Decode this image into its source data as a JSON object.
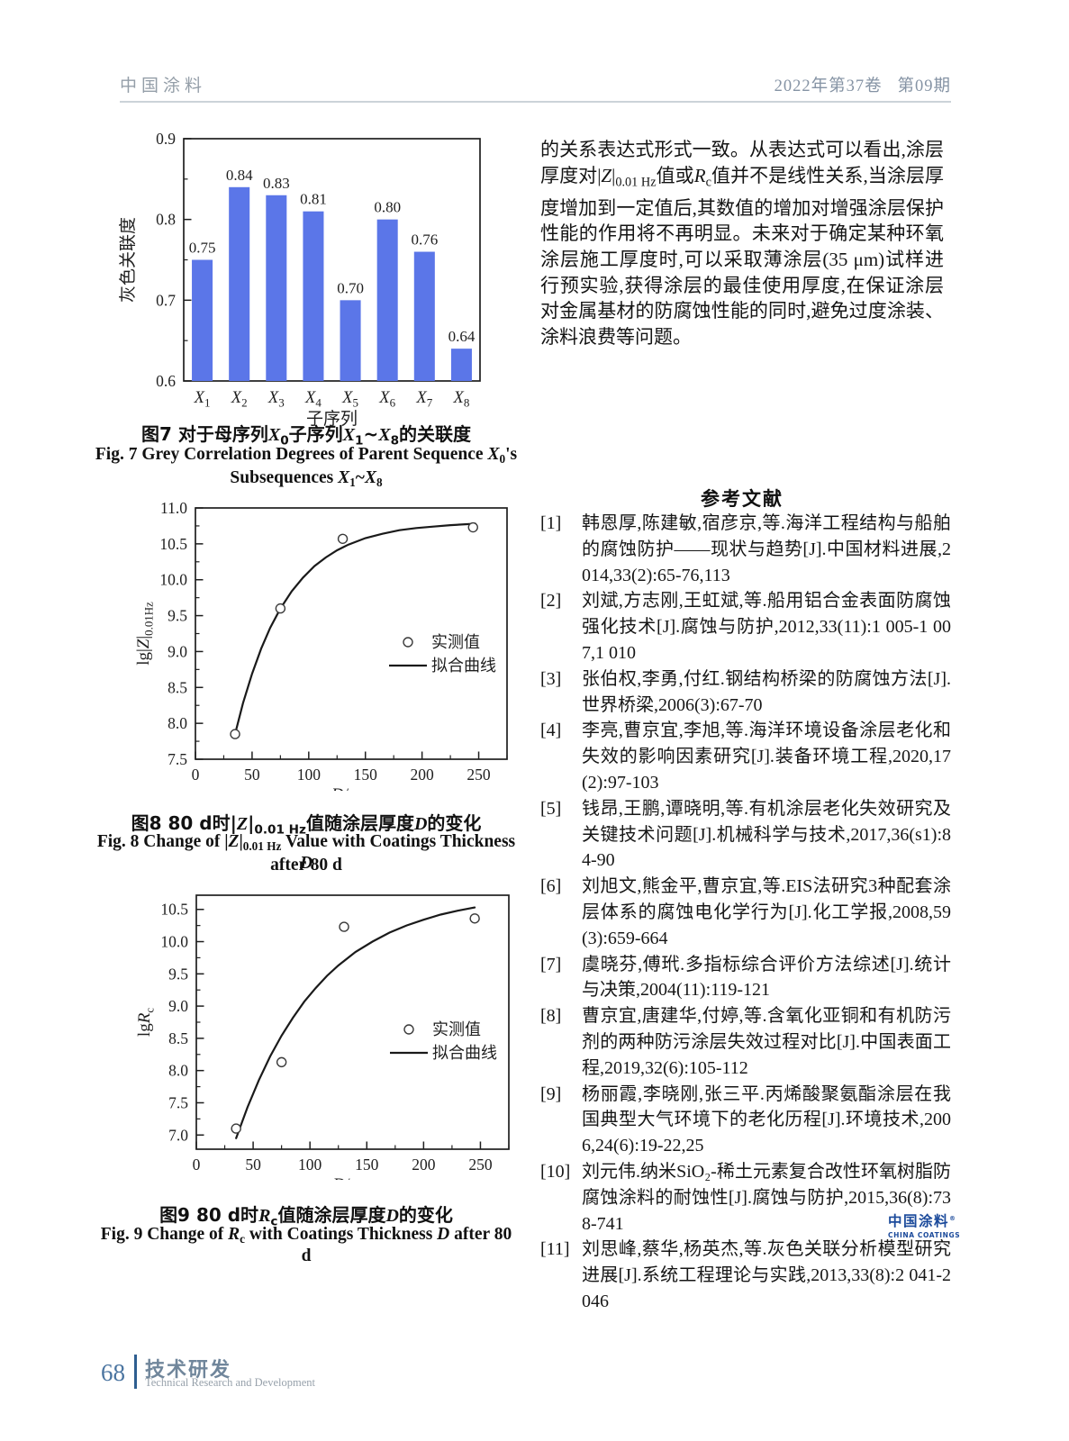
{
  "page": {
    "header": {
      "brand": "中国涂料",
      "issue": "2022年第37卷   第09期"
    },
    "footer": {
      "page_number": "68",
      "section_zh": "技术研发",
      "section_en": "Technical Research and Development"
    },
    "logo": {
      "zh": "中国涂料",
      "mark": "®",
      "en": "CHINA COATINGS"
    }
  },
  "article": {
    "paragraph_rich": [
      {
        "t": "的关系表达式形式一致。从表达式可以看出,涂层厚度对|"
      },
      {
        "t": "Z",
        "i": 1
      },
      {
        "t": "|"
      },
      {
        "t": "0.01 Hz",
        "sub": 1
      },
      {
        "t": "值或"
      },
      {
        "t": "R",
        "i": 1
      },
      {
        "t": "c",
        "sub": 1
      },
      {
        "t": "值并不是线性关系,当涂层厚度增加到一定值后,其数值的增加对增强涂层保护性能的作用将不再明显。未来对于确定某种环氧涂层施工厚度时,可以采取薄涂层(35 μm)试样进行预实验,获得涂层的最佳使用厚度,在保证涂层对金属基材的防腐蚀性能的同时,避免过度涂装、涂料浪费等问题。"
      }
    ],
    "references_heading": "参考文献",
    "references": [
      {
        "num": "[1]",
        "text": "韩恩厚,陈建敏,宿彦京,等.海洋工程结构与船舶的腐蚀防护——现状与趋势[J].中国材料进展,2014,33(2):65-76,113"
      },
      {
        "num": "[2]",
        "text": "刘斌,方志刚,王虹斌,等.船用铝合金表面防腐蚀强化技术[J].腐蚀与防护,2012,33(11):1 005-1 007,1 010"
      },
      {
        "num": "[3]",
        "text": "张伯权,李勇,付红.钢结构桥梁的防腐蚀方法[J].世界桥梁,2006(3):67-70"
      },
      {
        "num": "[4]",
        "text": "李亮,曹京宜,李旭,等.海洋环境设备涂层老化和失效的影响因素研究[J].装备环境工程,2020,17(2):97-103"
      },
      {
        "num": "[5]",
        "text": "钱昂,王鹏,谭晓明,等.有机涂层老化失效研究及关键技术问题[J].机械科学与技术,2017,36(s1):84-90"
      },
      {
        "num": "[6]",
        "text": "刘旭文,熊金平,曹京宜,等.EIS法研究3种配套涂层体系的腐蚀电化学行为[J].化工学报,2008,59(3):659-664"
      },
      {
        "num": "[7]",
        "text": "虞晓芬,傅玳.多指标综合评价方法综述[J].统计与决策,2004(11):119-121"
      },
      {
        "num": "[8]",
        "text": "曹京宜,唐建华,付婷,等.含氧化亚铜和有机防污剂的两种防污涂层失效过程对比[J].中国表面工程,2019,32(6):105-112"
      },
      {
        "num": "[9]",
        "text": "杨丽霞,李晓刚,张三平.丙烯酸聚氨酯涂层在我国典型大气环境下的老化历程[J].环境技术,2006,24(6):19-22,25"
      },
      {
        "num": "[10]",
        "text": "刘元伟.纳米SiO₂-稀土元素复合改性环氧树脂防腐蚀涂料的耐蚀性[J].腐蚀与防护,2015,36(8):738-741"
      },
      {
        "num": "[11]",
        "text": "刘思峰,蔡华,杨英杰,等.灰色关联分析模型研究进展[J].系统工程理论与实践,2013,33(8):2 041-2 046"
      }
    ]
  },
  "figures": {
    "fig7": {
      "caption_zh_rich": [
        {
          "t": "图7  对于母序列"
        },
        {
          "t": "X",
          "i": 1
        },
        {
          "t": "0",
          "sub": 1
        },
        {
          "t": "子序列"
        },
        {
          "t": "X",
          "i": 1
        },
        {
          "t": "1",
          "sub": 1
        },
        {
          "t": "~"
        },
        {
          "t": "X",
          "i": 1
        },
        {
          "t": "8",
          "sub": 1
        },
        {
          "t": "的关联度"
        }
      ],
      "caption_en1_rich": [
        {
          "t": "Fig. 7  Grey Correlation Degrees of Parent Sequence "
        },
        {
          "t": "X",
          "i": 1
        },
        {
          "t": "0",
          "sub": 1
        },
        {
          "t": "'s"
        }
      ],
      "caption_en2_rich": [
        {
          "t": "Subsequences "
        },
        {
          "t": "X",
          "i": 1
        },
        {
          "t": "1",
          "sub": 1
        },
        {
          "t": "~"
        },
        {
          "t": "X",
          "i": 1
        },
        {
          "t": "8",
          "sub": 1
        }
      ]
    },
    "fig8": {
      "caption_zh_rich": [
        {
          "t": "图8  80 d时|"
        },
        {
          "t": "Z",
          "i": 1
        },
        {
          "t": "|"
        },
        {
          "t": "0.01 Hz",
          "sub": 1
        },
        {
          "t": "值随涂层厚度"
        },
        {
          "t": "D",
          "i": 1
        },
        {
          "t": "的变化"
        }
      ],
      "caption_en1_rich": [
        {
          "t": "Fig. 8  Change of |"
        },
        {
          "t": "Z",
          "i": 1
        },
        {
          "t": "|"
        },
        {
          "t": "0.01 Hz",
          "sub": 1
        },
        {
          "t": " Value with Coatings Thickness "
        },
        {
          "t": "D",
          "i": 1
        }
      ],
      "caption_en2_rich": [
        {
          "t": "after 80 d"
        }
      ]
    },
    "fig9": {
      "caption_zh_rich": [
        {
          "t": "图9  80 d时"
        },
        {
          "t": "R",
          "i": 1
        },
        {
          "t": "c",
          "sub": 1
        },
        {
          "t": "值随涂层厚度"
        },
        {
          "t": "D",
          "i": 1
        },
        {
          "t": "的变化"
        }
      ],
      "caption_en1_rich": [
        {
          "t": "Fig. 9  Change of "
        },
        {
          "t": "R",
          "i": 1
        },
        {
          "t": "c",
          "sub": 1
        },
        {
          "t": " with Coatings Thickness "
        },
        {
          "t": "D",
          "i": 1
        },
        {
          "t": " after 80 d"
        }
      ]
    }
  },
  "chart_data": [
    {
      "id": "fig7",
      "type": "bar",
      "title": "对于母序列X0子序列X1~X8的关联度",
      "categories": [
        "X1",
        "X2",
        "X3",
        "X4",
        "X5",
        "X6",
        "X7",
        "X8"
      ],
      "values": [
        0.75,
        0.84,
        0.83,
        0.81,
        0.7,
        0.8,
        0.76,
        0.64
      ],
      "value_labels": [
        "0.75",
        "0.84",
        "0.83",
        "0.81",
        "0.70",
        "0.80",
        "0.76",
        "0.64"
      ],
      "xlabel": "子序列",
      "ylabel": "灰色关联度",
      "ylim": [
        0.6,
        0.9
      ],
      "yticks": [
        0.6,
        0.7,
        0.8,
        0.9
      ],
      "ytick_labels": [
        "0.6",
        "0.7",
        "0.8",
        "0.9"
      ],
      "yminor": 0.05,
      "grid": false,
      "bar_color": "#5b76e8"
    },
    {
      "id": "fig8",
      "type": "scatter",
      "title": "80 d时|Z|0.01 Hz值随涂层厚度D的变化",
      "points": [
        [
          35,
          7.85
        ],
        [
          75,
          9.6
        ],
        [
          130,
          10.57
        ],
        [
          245,
          10.73
        ]
      ],
      "curve": [
        [
          35,
          7.85
        ],
        [
          42,
          8.28
        ],
        [
          50,
          8.69
        ],
        [
          58,
          9.04
        ],
        [
          66,
          9.33
        ],
        [
          75,
          9.6
        ],
        [
          85,
          9.84
        ],
        [
          95,
          10.03
        ],
        [
          105,
          10.19
        ],
        [
          115,
          10.31
        ],
        [
          125,
          10.41
        ],
        [
          135,
          10.49
        ],
        [
          150,
          10.58
        ],
        [
          165,
          10.64
        ],
        [
          180,
          10.69
        ],
        [
          195,
          10.72
        ],
        [
          210,
          10.74
        ],
        [
          225,
          10.76
        ],
        [
          247,
          10.78
        ]
      ],
      "xlim": [
        0,
        275
      ],
      "ylim": [
        7.5,
        11.0
      ],
      "xticks": [
        0,
        50,
        100,
        150,
        200,
        250
      ],
      "xtick_labels": [
        "0",
        "50",
        "100",
        "150",
        "200",
        "250"
      ],
      "yticks": [
        7.5,
        8.0,
        8.5,
        9.0,
        9.5,
        10.0,
        10.5,
        11.0
      ],
      "ytick_labels": [
        "7.5",
        "8.0",
        "8.5",
        "9.0",
        "9.5",
        "10.0",
        "10.5",
        "11.0"
      ],
      "xminor": 25,
      "yminor": 0.25,
      "grid": false,
      "xlabel_rich": [
        {
          "t": "D",
          "i": 1
        },
        {
          "t": "/μm"
        }
      ],
      "ylabel_rich": [
        {
          "t": "lg|"
        },
        {
          "t": "Z",
          "i": 1
        },
        {
          "t": "|"
        },
        {
          "t": "0.01Hz",
          "sub": 1
        }
      ],
      "legend": [
        {
          "marker": "circle",
          "label": "实测值"
        },
        {
          "marker": "line",
          "label": "拟合曲线"
        }
      ],
      "legend_position": "center-right"
    },
    {
      "id": "fig9",
      "type": "scatter",
      "title": "80 d时Rc值随涂层厚度D的变化",
      "points": [
        [
          35,
          7.1
        ],
        [
          75,
          8.13
        ],
        [
          130,
          10.23
        ],
        [
          245,
          10.36
        ]
      ],
      "curve": [
        [
          35,
          6.95
        ],
        [
          45,
          7.43
        ],
        [
          55,
          7.85
        ],
        [
          65,
          8.22
        ],
        [
          75,
          8.54
        ],
        [
          85,
          8.82
        ],
        [
          95,
          9.07
        ],
        [
          105,
          9.28
        ],
        [
          115,
          9.47
        ],
        [
          125,
          9.63
        ],
        [
          140,
          9.84
        ],
        [
          155,
          10.0
        ],
        [
          170,
          10.14
        ],
        [
          185,
          10.25
        ],
        [
          200,
          10.34
        ],
        [
          215,
          10.42
        ],
        [
          230,
          10.48
        ],
        [
          245,
          10.53
        ]
      ],
      "xlim": [
        0,
        275
      ],
      "ylim": [
        6.78,
        10.72
      ],
      "xticks": [
        0,
        50,
        100,
        150,
        200,
        250
      ],
      "xtick_labels": [
        "0",
        "50",
        "100",
        "150",
        "200",
        "250"
      ],
      "yticks": [
        7.0,
        7.5,
        8.0,
        8.5,
        9.0,
        9.5,
        10.0,
        10.5
      ],
      "ytick_labels": [
        "7.0",
        "7.5",
        "8.0",
        "8.5",
        "9.0",
        "9.5",
        "10.0",
        "10.5"
      ],
      "xminor": 25,
      "yminor": 0.25,
      "grid": false,
      "xlabel_rich": [
        {
          "t": "D",
          "i": 1
        },
        {
          "t": "/μm"
        }
      ],
      "ylabel_rich": [
        {
          "t": "lg"
        },
        {
          "t": "R",
          "i": 1
        },
        {
          "t": "c",
          "sub": 1
        }
      ],
      "legend": [
        {
          "marker": "circle",
          "label": "实测值"
        },
        {
          "marker": "line",
          "label": "拟合曲线"
        }
      ],
      "legend_position": "center-right"
    }
  ],
  "colors": {
    "bar_blue": "#5b76e8",
    "logo_blue": "#1b4a9b",
    "footer_blue": "#2e5e90",
    "header_gray": "#949ea8",
    "axis_black": "#222222"
  }
}
